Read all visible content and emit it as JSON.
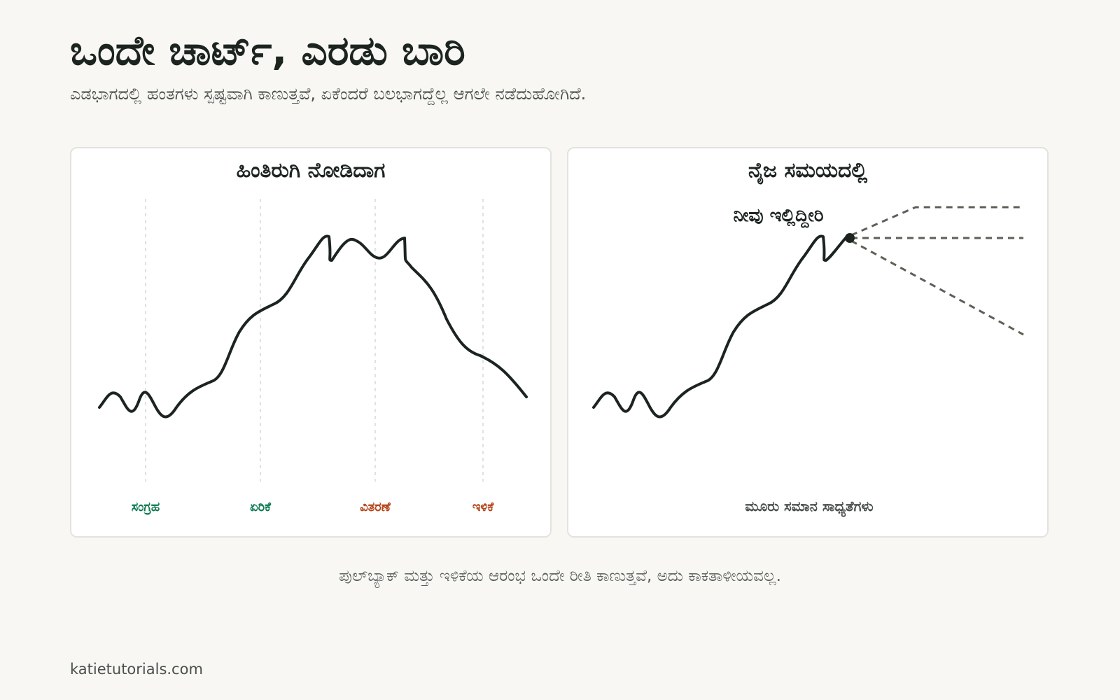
{
  "header": {
    "title": "ಒಂದೇ ಚಾರ್ಟ್, ಎರಡು ಬಾರಿ",
    "subtitle": "ಎಡಭಾಗದಲ್ಲಿ ಹಂತಗಳು ಸ್ಪಷ್ಟವಾಗಿ ಕಾಣುತ್ತವೆ, ಏಕೆಂದರೆ ಬಲಭಾಗದ್ದೆಲ್ಲ ಆಗಲೇ ನಡೆದುಹೋಗಿದೆ."
  },
  "left_panel": {
    "title": "ಹಿಂತಿರುಗಿ ನೋಡಿದಾಗ",
    "phases": [
      {
        "label": "ಸಂಗ್ರಹ",
        "color": "#0e7a52"
      },
      {
        "label": "ಏರಿಕೆ",
        "color": "#0e7a52"
      },
      {
        "label": "ವಿತರಣೆ",
        "color": "#b5461b"
      },
      {
        "label": "ಇಳಿಕೆ",
        "color": "#b5461b"
      }
    ]
  },
  "right_panel": {
    "title": "ನೈಜ ಸಮಯದಲ್ಲಿ",
    "marker_label": "ನೀವು ಇಲ್ಲಿದ್ದೀರಿ",
    "bottom_label": "ಮೂರು ಸಮಾನ ಸಾಧ್ಯತೆಗಳು"
  },
  "footnote": "ಪುಲ್‌ಬ್ಯಾಕ್ ಮತ್ತು ಇಳಿಕೆಯ ಆರಂಭ ಒಂದೇ ರೀತಿ ಕಾಣುತ್ತವೆ, ಅದು ಕಾಕತಾಳೀಯವಲ್ಲ.",
  "brand": "katietutorials.com",
  "colors": {
    "line": "#1c2420",
    "projection": "#5f5f58",
    "accumulation": "#0e7a52",
    "distribution": "#b5461b"
  }
}
